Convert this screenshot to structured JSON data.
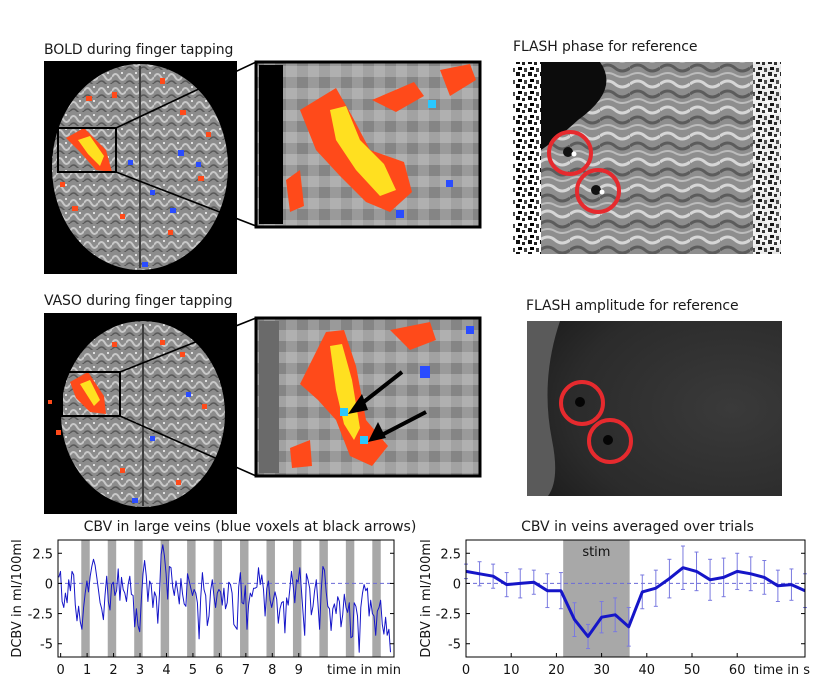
{
  "panels": {
    "bold_title": "BOLD during finger tapping",
    "vaso_title": "VASO during finger tapping",
    "flash_phase_title": "FLASH phase for reference",
    "flash_amp_title": "FLASH amplitude for reference"
  },
  "colors": {
    "activation_warm": "#ff4a1a",
    "activation_hot": "#ffe020",
    "activation_cold": "#2a4cff",
    "roi_circle": "#e62a2e",
    "trace_blue": "#1515c8",
    "stim_gray": "#a8a8a8"
  },
  "chart_data": [
    {
      "type": "line",
      "title": "CBV in large veins (blue voxels at black arrows)",
      "xlabel": "time in min",
      "ylabel": "DCBV in ml/100ml",
      "xlim": [
        -0.1,
        12.6
      ],
      "ylim": [
        -6.1,
        3.6
      ],
      "xticks": [
        0,
        1,
        2,
        3,
        4,
        5,
        6,
        7,
        8,
        9
      ],
      "xtick_labels": [
        "0",
        "1",
        "2",
        "3",
        "4",
        "5",
        "6",
        "7",
        "8",
        "9"
      ],
      "yticks": [
        2.5,
        0,
        -2.5,
        -5
      ],
      "ytick_labels": [
        "2.5",
        "0",
        "-2.5",
        "-5"
      ],
      "stim_blocks": [
        [
          0.78,
          1.1
        ],
        [
          1.78,
          2.1
        ],
        [
          2.78,
          3.1
        ],
        [
          3.78,
          4.1
        ],
        [
          4.78,
          5.1
        ],
        [
          5.78,
          6.1
        ],
        [
          6.78,
          7.1
        ],
        [
          7.78,
          8.1
        ],
        [
          8.78,
          9.1
        ],
        [
          9.78,
          10.1
        ],
        [
          10.78,
          11.1
        ],
        [
          11.78,
          12.1
        ]
      ],
      "series": [
        {
          "values": [
            0.5,
            1.0,
            -1.5,
            -2.0,
            -0.8,
            -1.6,
            0.3,
            -0.6,
            1.0,
            0.7,
            -1.8,
            -3.1,
            -1.9,
            -3.2,
            -3.8,
            -2.0,
            -0.8,
            0.2,
            -0.7,
            0.6,
            1.4,
            2.0,
            1.5,
            0.5,
            -0.5,
            -1.6,
            -2.1,
            -3.0,
            -1.0,
            0.6,
            -1.5,
            -2.2,
            -0.1,
            0.1,
            -1.0,
            -0.6,
            1.2,
            -1.4,
            0.5,
            -0.5,
            -0.8,
            -1.5,
            -0.1,
            0.6,
            -0.9,
            -1.0,
            -3.6,
            -2.1,
            -3.5,
            -4.0,
            -1.4,
            0.8,
            1.9,
            0.6,
            -1.5,
            0.2,
            -0.1,
            -2.0,
            -0.7,
            -1.1,
            -3.3,
            -0.8,
            2.4,
            3.2,
            2.3,
            0.8,
            -1.3,
            1.4,
            1.3,
            -0.3,
            -1.0,
            0.2,
            -0.6,
            -1.7,
            0.4,
            -0.9,
            -1.7,
            -1.9,
            0.8,
            0.2,
            -0.4,
            -1.0,
            -0.5,
            -0.8,
            -1.6,
            -4.6,
            -1.2,
            0.9,
            -0.5,
            -1.0,
            -3.5,
            -2.7,
            -0.6,
            0.3,
            -1.1,
            -2.0,
            -0.8,
            -0.5,
            -0.7,
            -1.8,
            -0.4,
            -2.1,
            -1.6,
            0.1,
            -0.1,
            -0.8,
            -3.4,
            -3.6,
            -3.8,
            -0.3,
            0.9,
            -1.6,
            -1.7,
            -0.2,
            -3.8,
            -1.8,
            -0.8,
            -1.1,
            -0.4,
            -0.4,
            -0.3,
            1.3,
            -0.1,
            0.7,
            -0.5,
            -2.7,
            -0.4,
            0.2,
            -1.4,
            -2.0,
            -1.3,
            -0.7,
            -1.3,
            -3.3,
            -2.1,
            -1.6,
            -1.5,
            -4.1,
            -1.2,
            -1.8,
            -0.4,
            1.0,
            -0.2,
            -1.6,
            0.3,
            0.1,
            1.3,
            -0.5,
            -2.5,
            -4.3,
            0.8,
            0.3,
            -0.4,
            -2.6,
            -1.9,
            -0.6,
            0.3,
            -1.6,
            -3.8,
            -0.6,
            1.4,
            1.1,
            -0.7,
            -1.9,
            -2.1,
            -3.9,
            -2.1,
            -1.7,
            -2.5,
            -1.1,
            -1.5,
            -3.6,
            -2.6,
            -0.9,
            -2.0,
            -2.4,
            -1.6,
            -4.5,
            -4.4,
            -1.6,
            -1.9,
            -2.7,
            -5.7,
            -2.0,
            -0.8,
            -0.1,
            -0.6,
            -0.4,
            -2.7,
            -1.4,
            -2.5,
            -2.7,
            -4.3,
            -2.3,
            -2.0,
            -1.4,
            -3.4,
            -4.2,
            -2.8,
            -4.3,
            -3.8,
            -5.7
          ]
        }
      ]
    },
    {
      "type": "line",
      "title": "CBV in veins averaged over trials",
      "xlabel": "time in s",
      "ylabel": "DCBV in ml/100ml",
      "xlim": [
        0,
        75
      ],
      "ylim": [
        -6.1,
        3.6
      ],
      "xticks": [
        0,
        10,
        20,
        30,
        40,
        50,
        60
      ],
      "xtick_labels": [
        "0",
        "10",
        "20",
        "30",
        "40",
        "50",
        "60"
      ],
      "yticks": [
        2.5,
        0,
        -2.5,
        -5
      ],
      "ytick_labels": [
        "2.5",
        "0",
        "-2.5",
        "-5"
      ],
      "stim_blocks": [
        [
          21.5,
          36.2
        ]
      ],
      "stim_label": "stim",
      "series": [
        {
          "x": [
            0,
            3,
            6,
            9,
            12,
            15,
            18,
            21,
            24,
            27,
            30,
            33,
            36,
            39,
            42,
            45,
            48,
            51,
            54,
            57,
            60,
            63,
            66,
            69,
            72,
            75
          ],
          "values": [
            1.0,
            0.8,
            0.6,
            -0.1,
            0.0,
            0.1,
            -0.6,
            -0.6,
            -3.0,
            -4.4,
            -2.8,
            -2.6,
            -3.6,
            -0.7,
            -0.4,
            0.4,
            1.3,
            1.0,
            0.3,
            0.5,
            1.0,
            0.8,
            0.5,
            -0.2,
            -0.1,
            -0.6
          ],
          "err": [
            0.6,
            1.0,
            1.0,
            1.0,
            1.2,
            1.0,
            1.4,
            1.5,
            1.4,
            1.0,
            1.3,
            1.4,
            1.6,
            1.4,
            1.5,
            1.6,
            1.8,
            1.6,
            1.7,
            1.6,
            1.5,
            1.4,
            1.4,
            1.3,
            1.3,
            1.4
          ]
        }
      ]
    }
  ]
}
